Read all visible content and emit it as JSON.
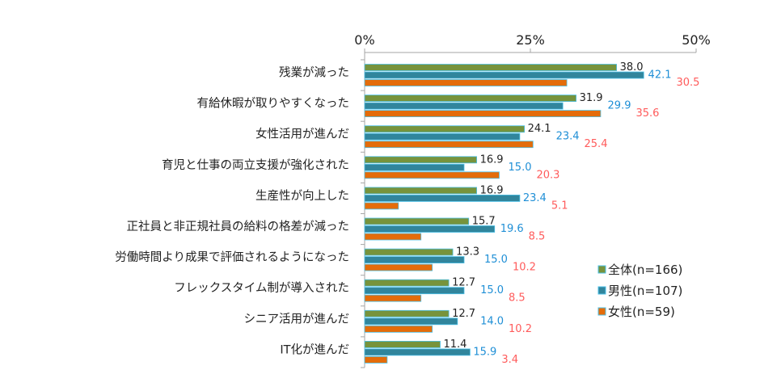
{
  "chart_data": {
    "type": "bar",
    "orientation": "horizontal",
    "categories": [
      "残業が減った",
      "有給休暇が取りやすくなった",
      "女性活用が進んだ",
      "育児と仕事の両立支援が強化された",
      "生産性が向上した",
      "正社員と非正規社員の給料の格差が減った",
      "労働時間より成果で評価されるようになった",
      "フレックスタイム制が導入された",
      "シニア活用が進んだ",
      "IT化が進んだ"
    ],
    "series": [
      {
        "name": "全体(n=166)",
        "color": "#77933C",
        "label_color": "#222222",
        "values": [
          38.0,
          31.9,
          24.1,
          16.9,
          16.9,
          15.7,
          13.3,
          12.7,
          12.7,
          11.4
        ]
      },
      {
        "name": "男性(n=107)",
        "color": "#31859C",
        "label_color": "#1F8FD6",
        "values": [
          42.1,
          29.9,
          23.4,
          15.0,
          23.4,
          19.6,
          15.0,
          15.0,
          14.0,
          15.9
        ]
      },
      {
        "name": "女性(n=59)",
        "color": "#E46C0A",
        "label_color": "#FF5B5B",
        "values": [
          30.5,
          35.6,
          25.4,
          20.3,
          5.1,
          8.5,
          10.2,
          8.5,
          10.2,
          3.4
        ]
      }
    ],
    "xlim": [
      0,
      50
    ],
    "x_ticks": [
      "0%",
      "25%",
      "50%"
    ],
    "x_axis_position": "top",
    "legend_position": "right",
    "grid": false,
    "title": "",
    "xlabel": "",
    "ylabel": ""
  }
}
